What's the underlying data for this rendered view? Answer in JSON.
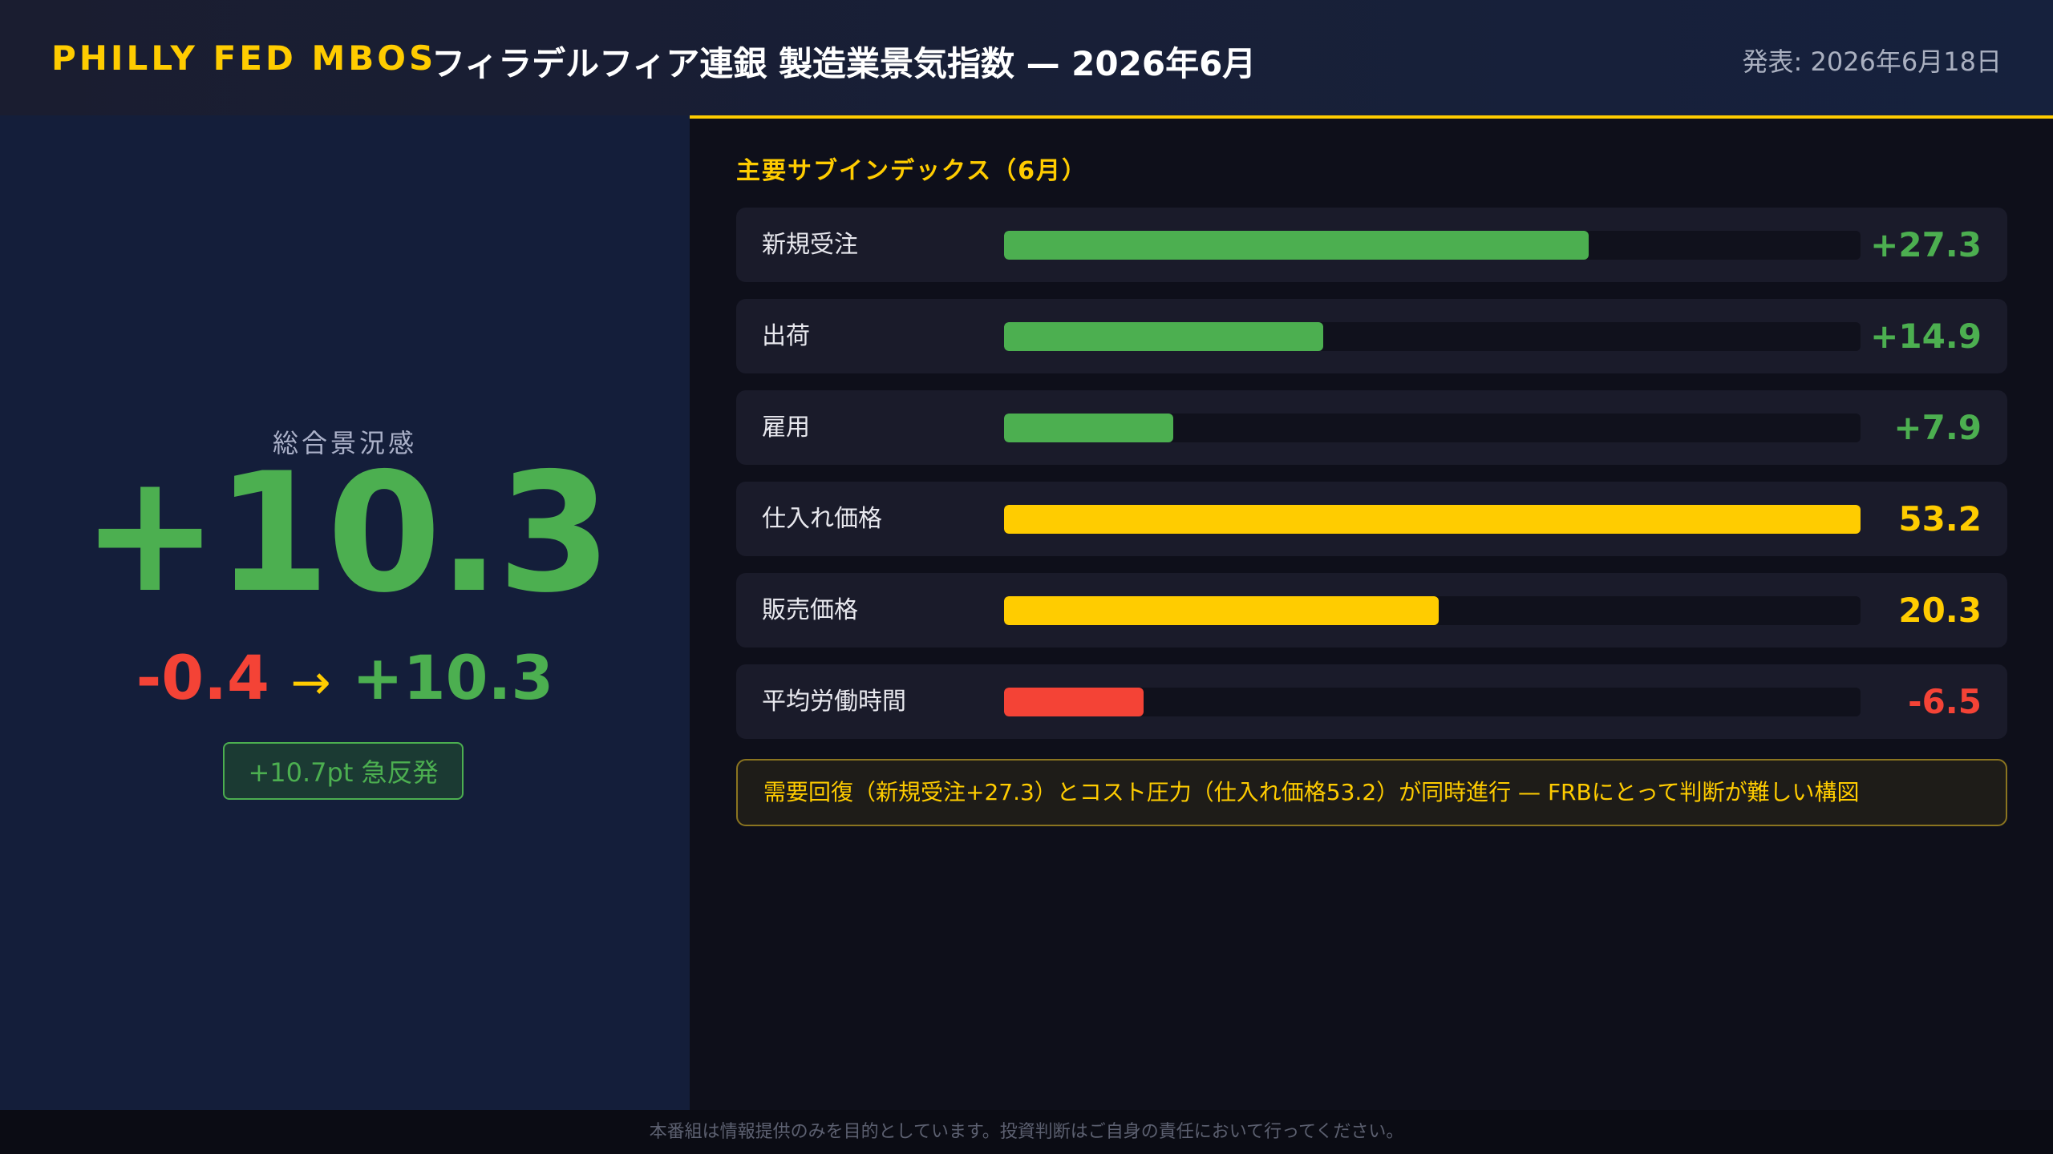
{
  "header": {
    "brand": "PHILLY FED MBOS",
    "title": "フィラデルフィア連銀 製造業景気指数 — 2026年6月",
    "date": "発表: 2026年6月18日"
  },
  "headline": {
    "label": "総合景況感",
    "value": "+10.3",
    "previous": "-0.4",
    "arrow": "→",
    "current": "+10.3",
    "badge": "+10.7pt 急反発"
  },
  "chart_data": {
    "type": "bar",
    "orientation": "horizontal",
    "title": "主要サブインデックス（6月）",
    "categories": [
      "新規受注",
      "出荷",
      "雇用",
      "仕入れ価格",
      "販売価格",
      "平均労働時間"
    ],
    "values": [
      27.3,
      14.9,
      7.9,
      53.2,
      20.3,
      -6.5
    ],
    "value_labels": [
      "+27.3",
      "+14.9",
      "+7.9",
      "53.2",
      "20.3",
      "-6.5"
    ],
    "colors": [
      "#4caf50",
      "#4caf50",
      "#4caf50",
      "#ffcc00",
      "#ffcc00",
      "#f44336"
    ],
    "xlim": [
      0,
      40
    ]
  },
  "note": "需要回復（新規受注+27.3）とコスト圧力（仕入れ価格53.2）が同時進行 — FRBにとって判断が難しい構図",
  "footer": "本番組は情報提供のみを目的としています。投資判断はご自身の責任において行ってください。"
}
